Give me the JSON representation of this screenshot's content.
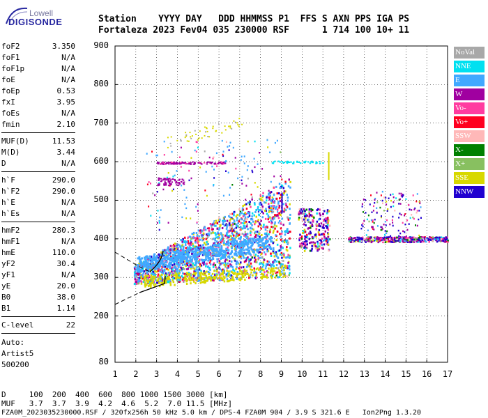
{
  "logo": {
    "top": "Lowell",
    "main": "DIGISONDE"
  },
  "header": {
    "line1": "Station    YYYY DAY   DDD HHMMSS P1  FFS S AXN PPS IGA PS",
    "line2": "Fortaleza 2023 Fev04 035 230000 RSF      1 714 100 10+ 11"
  },
  "params": [
    {
      "label": "foF2",
      "value": "3.350"
    },
    {
      "label": "foF1",
      "value": "N/A"
    },
    {
      "label": "foF1p",
      "value": "N/A"
    },
    {
      "label": "foE",
      "value": "N/A"
    },
    {
      "label": "foEp",
      "value": "0.53"
    },
    {
      "label": "fxI",
      "value": "3.95"
    },
    {
      "label": "foEs",
      "value": "N/A"
    },
    {
      "label": "fmin",
      "value": "2.10"
    },
    {
      "label": "MUF(D)",
      "value": "11.53"
    },
    {
      "label": "M(D)",
      "value": "3.44"
    },
    {
      "label": "D",
      "value": "N/A"
    },
    {
      "label": "h`F",
      "value": "290.0"
    },
    {
      "label": "h`F2",
      "value": "290.0"
    },
    {
      "label": "h`E",
      "value": "N/A"
    },
    {
      "label": "h`Es",
      "value": "N/A"
    },
    {
      "label": "hmF2",
      "value": "280.3"
    },
    {
      "label": "hmF1",
      "value": "N/A"
    },
    {
      "label": "hmE",
      "value": "110.0"
    },
    {
      "label": "yF2",
      "value": "30.4"
    },
    {
      "label": "yF1",
      "value": "N/A"
    },
    {
      "label": "yE",
      "value": "20.0"
    },
    {
      "label": "B0",
      "value": "38.0"
    },
    {
      "label": "B1",
      "value": "1.14"
    },
    {
      "label": "C-level",
      "value": "22"
    }
  ],
  "notes": {
    "auto": "Auto:",
    "artist": "Artist5",
    "code": "500200"
  },
  "legend": [
    {
      "label": "NoVal",
      "color": "#a8a8a8"
    },
    {
      "label": "NNE",
      "color": "#00e0f0"
    },
    {
      "label": "E",
      "color": "#40a8ff"
    },
    {
      "label": "W",
      "color": "#a000a0"
    },
    {
      "label": "Vo-",
      "color": "#ff3ca0"
    },
    {
      "label": "Vo+",
      "color": "#ff0020"
    },
    {
      "label": "SSW",
      "color": "#ffb8b8"
    },
    {
      "label": "X-",
      "color": "#008000"
    },
    {
      "label": "X+",
      "color": "#88c060"
    },
    {
      "label": "SSE",
      "color": "#d8d800"
    },
    {
      "label": "NNW",
      "color": "#2000d0"
    }
  ],
  "chart_data": {
    "type": "scatter",
    "x_ticks": [
      "1",
      "2",
      "3",
      "4",
      "5",
      "6",
      "7",
      "8",
      "9",
      "10",
      "11",
      "12",
      "13",
      "14",
      "15",
      "16",
      "17"
    ],
    "y_ticks": [
      "80",
      "200",
      "300",
      "400",
      "500",
      "600",
      "700",
      "800",
      "900"
    ],
    "xlim": [
      1,
      17
    ],
    "ylim": [
      80,
      900
    ]
  },
  "footer": {
    "line1": "D     100  200  400  600  800 1000 1500 3000 [km]",
    "line2": "MUF   3.7  3.7  3.9  4.2  4.6  5.2  7.0 11.5 [MHz]",
    "line3": "FZA0M_2023035230000.RSF / 320fx256h 50 kHz 5.0 km / DPS-4 FZA0M 904 / 3.9 S 321.6 E   Ion2Png 1.3.20"
  }
}
